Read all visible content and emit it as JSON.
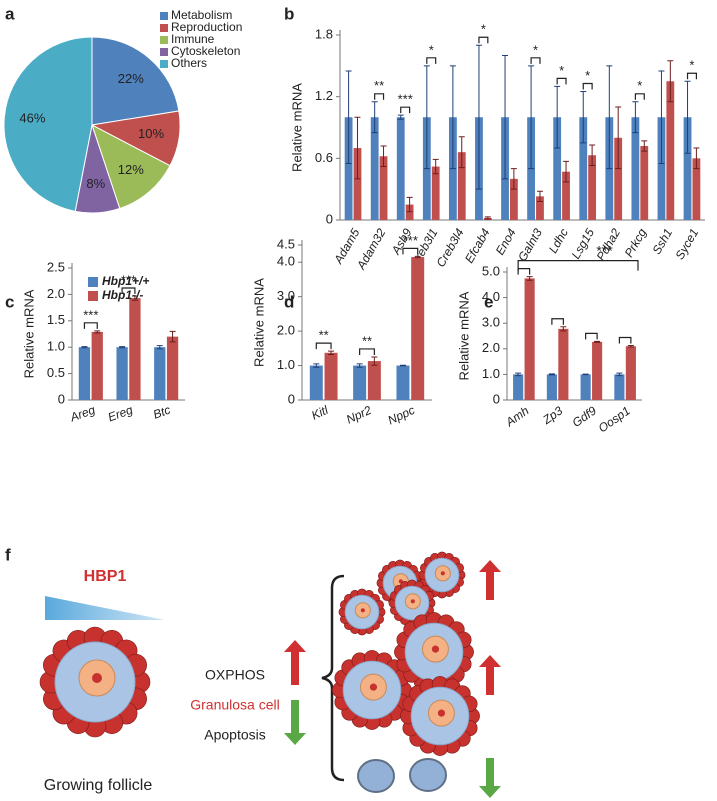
{
  "chart_data": [
    {
      "type": "pie",
      "panel": "a",
      "categories": [
        "Metabolism",
        "Reproduction",
        "Immune",
        "Cytoskeleton",
        "Others"
      ],
      "values": [
        22,
        10,
        12,
        8,
        46
      ],
      "value_labels": [
        "22%",
        "10%",
        "12%",
        "8%",
        "46%"
      ],
      "colors": [
        "#4f81bd",
        "#c0504d",
        "#9bbb59",
        "#8064a2",
        "#4bacc6"
      ]
    },
    {
      "type": "bar",
      "panel": "b",
      "ylabel": "Relative mRNA",
      "categories": [
        "Adam5",
        "Adam32",
        "Asb9",
        "Creb3l1",
        "Creb3l4",
        "Efcab4",
        "Eno4",
        "Galnt3",
        "Ldhc",
        "Lsg15",
        "Pdha2",
        "Prkcg",
        "Ssh1",
        "Syce1"
      ],
      "series": [
        {
          "color": "#4f81bd",
          "values": [
            1,
            1,
            1,
            1,
            1,
            1,
            1,
            1,
            1,
            1,
            1,
            1,
            1,
            1
          ],
          "errors": [
            0.45,
            0.15,
            0.02,
            0.5,
            0.5,
            0.7,
            0.6,
            0.5,
            0.3,
            0.25,
            0.5,
            0.15,
            0.45,
            0.35
          ]
        },
        {
          "color": "#c0504d",
          "values": [
            0.7,
            0.62,
            0.15,
            0.52,
            0.66,
            0.02,
            0.4,
            0.23,
            0.47,
            0.63,
            0.8,
            0.72,
            1.35,
            0.6
          ],
          "errors": [
            0.3,
            0.1,
            0.07,
            0.07,
            0.15,
            0.01,
            0.1,
            0.05,
            0.1,
            0.1,
            0.3,
            0.05,
            0.2,
            0.1
          ]
        }
      ],
      "significance": [
        null,
        "**",
        "***",
        "*",
        null,
        "*",
        null,
        "*",
        "*",
        "*",
        null,
        "*",
        null,
        "*"
      ],
      "ylim": [
        0,
        1.8
      ],
      "yticks": [
        0,
        0.6,
        1.2,
        1.8
      ]
    },
    {
      "type": "bar",
      "panel": "c",
      "ylabel": "Relative mRNA",
      "categories": [
        "Areg",
        "Ereg",
        "Btc"
      ],
      "series": [
        {
          "name": "Hbp1+/+",
          "color": "#4f81bd",
          "values": [
            1,
            1,
            1
          ],
          "errors": [
            0.01,
            0.01,
            0.03
          ]
        },
        {
          "name": "Hbp1-/-",
          "color": "#c0504d",
          "values": [
            1.29,
            1.93,
            1.2
          ],
          "errors": [
            0.02,
            0.04,
            0.1
          ]
        }
      ],
      "significance": [
        "***",
        "***",
        null
      ],
      "ylim": [
        0,
        2.5
      ],
      "yticks": [
        0,
        0.5,
        {
          "value": 1,
          "label": "1.0"
        },
        1.5,
        {
          "value": 2,
          "label": "2.0"
        },
        2.5
      ]
    },
    {
      "type": "bar",
      "panel": "d",
      "ylabel": "Relative mRNA",
      "categories": [
        "Kitl",
        "Npr2",
        "Nppc"
      ],
      "series": [
        {
          "color": "#4f81bd",
          "values": [
            1,
            1,
            1
          ],
          "errors": [
            0.05,
            0.05,
            0.01
          ]
        },
        {
          "color": "#c0504d",
          "values": [
            1.37,
            1.13,
            4.15
          ],
          "errors": [
            0.05,
            0.12,
            0.02
          ]
        }
      ],
      "significance": [
        "**",
        "**",
        "***"
      ],
      "ylim": [
        0,
        4.5
      ],
      "yticks": [
        0,
        {
          "value": 1,
          "label": "1.0"
        },
        {
          "value": 2,
          "label": "2.0"
        },
        {
          "value": 3,
          "label": "3.0"
        },
        {
          "value": 4,
          "label": "4.0"
        },
        4.5
      ]
    },
    {
      "type": "bar",
      "panel": "e",
      "ylabel": "Relative mRNA",
      "categories": [
        "Amh",
        "Zp3",
        "Gdf9",
        "Oosp1"
      ],
      "series": [
        {
          "color": "#4f81bd",
          "values": [
            1,
            1,
            1,
            1
          ],
          "errors": [
            0.05,
            0.02,
            0.01,
            0.05
          ]
        },
        {
          "color": "#c0504d",
          "values": [
            4.75,
            2.78,
            2.27,
            2.1
          ],
          "errors": [
            0.07,
            0.08,
            0.02,
            0.03
          ]
        }
      ],
      "annotation": "***",
      "ylim": [
        0,
        5
      ],
      "yticks": [
        0,
        {
          "value": 1,
          "label": "1.0"
        },
        {
          "value": 2,
          "label": "2.0"
        },
        {
          "value": 3,
          "label": "3.0"
        },
        {
          "value": 4,
          "label": "4.0"
        },
        {
          "value": 5,
          "label": "5.0"
        }
      ]
    }
  ],
  "diagram": {
    "panel": "f",
    "factor": "HBP1",
    "cell": "Growing follicle",
    "effects": [
      "OXPHOS",
      "Granulosa cell",
      "Apoptosis"
    ]
  }
}
